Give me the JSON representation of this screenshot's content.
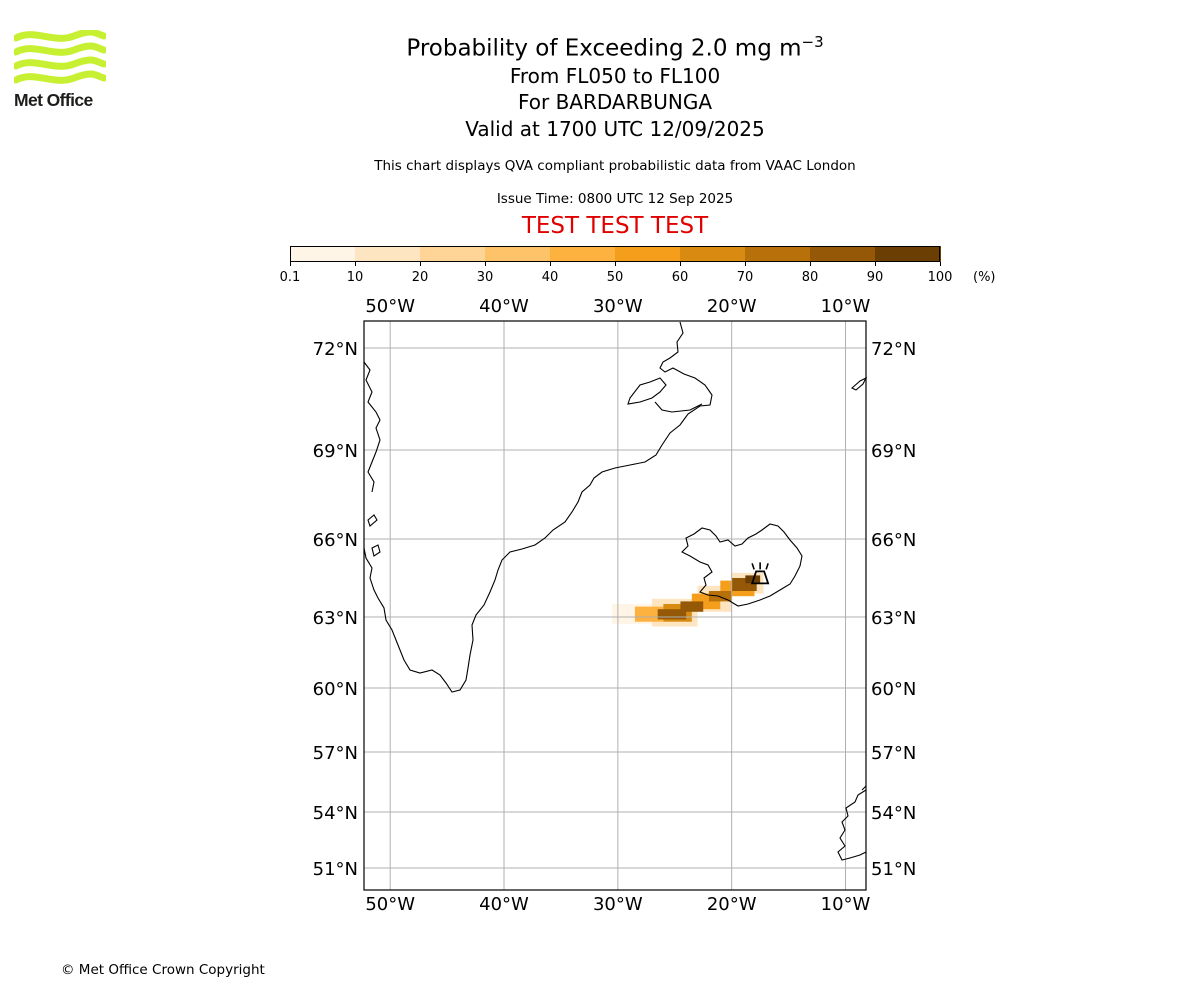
{
  "title": "Probability of Exceeding 2.0 mg m",
  "title_superscript": "−3",
  "subtitle_levels": "From FL050 to FL100",
  "subtitle_volcano": "For BARDARBUNGA",
  "subtitle_valid": "Valid at 1700 UTC 12/09/2025",
  "description": "This chart displays QVA compliant probabilistic data from VAAC London",
  "issue_time": "Issue Time: 0800 UTC 12 Sep 2025",
  "test_banner": "TEST TEST TEST",
  "logo_text": "Met Office",
  "copyright": "© Met Office Crown Copyright",
  "colors": {
    "test_banner": "#e00000",
    "logo_waves": "#c8f032",
    "grid": "#b0b0b0"
  },
  "colorbar": {
    "unit": "(%)",
    "ticks": [
      "0.1",
      "10",
      "20",
      "30",
      "40",
      "50",
      "60",
      "70",
      "80",
      "90",
      "100"
    ],
    "colors": [
      "#fff5e6",
      "#fee5c2",
      "#fed596",
      "#fec368",
      "#fdb13e",
      "#f59e1c",
      "#d98a10",
      "#b8700a",
      "#955806",
      "#6b3e04"
    ]
  },
  "map": {
    "lon_range": [
      -52.3,
      -8.2
    ],
    "lat_range": [
      50.2,
      72.8
    ],
    "lon_labels": [
      {
        "lon": -50,
        "label": "50°W"
      },
      {
        "lon": -40,
        "label": "40°W"
      },
      {
        "lon": -30,
        "label": "30°W"
      },
      {
        "lon": -20,
        "label": "20°W"
      },
      {
        "lon": -10,
        "label": "10°W"
      }
    ],
    "lat_labels": [
      {
        "lat": 72,
        "label": "72°N"
      },
      {
        "lat": 69,
        "label": "69°N"
      },
      {
        "lat": 66,
        "label": "66°N"
      },
      {
        "lat": 63,
        "label": "63°N"
      },
      {
        "lat": 60,
        "label": "60°N"
      },
      {
        "lat": 57,
        "label": "57°N"
      },
      {
        "lat": 54,
        "label": "54°N"
      },
      {
        "lat": 51,
        "label": "51°N"
      }
    ],
    "volcano": {
      "name": "BARDARBUNGA",
      "lon": -17.5,
      "lat": 64.6,
      "icon": "volcano-icon"
    },
    "plume_bands": [
      {
        "lon_start": -30.5,
        "lon_end": -27.0,
        "lat_min": 62.7,
        "lat_max": 63.5,
        "probability": 5
      },
      {
        "lon_start": -27.0,
        "lon_end": -23.0,
        "lat_min": 62.6,
        "lat_max": 63.7,
        "probability": 15
      },
      {
        "lon_start": -23.0,
        "lon_end": -20.0,
        "lat_min": 63.2,
        "lat_max": 64.2,
        "probability": 12
      },
      {
        "lon_start": -20.0,
        "lon_end": -17.2,
        "lat_min": 63.9,
        "lat_max": 64.7,
        "probability": 10
      },
      {
        "lon_start": -28.5,
        "lon_end": -26.0,
        "lat_min": 62.8,
        "lat_max": 63.4,
        "probability": 45
      },
      {
        "lon_start": -26.0,
        "lon_end": -23.5,
        "lat_min": 62.8,
        "lat_max": 63.5,
        "probability": 60
      },
      {
        "lon_start": -23.5,
        "lon_end": -21.0,
        "lat_min": 63.3,
        "lat_max": 63.9,
        "probability": 55
      },
      {
        "lon_start": -21.0,
        "lon_end": -18.0,
        "lat_min": 63.8,
        "lat_max": 64.4,
        "probability": 50
      },
      {
        "lon_start": -26.5,
        "lon_end": -24.0,
        "lat_min": 62.9,
        "lat_max": 63.3,
        "probability": 85
      },
      {
        "lon_start": -24.5,
        "lon_end": -22.5,
        "lat_min": 63.2,
        "lat_max": 63.6,
        "probability": 80
      },
      {
        "lon_start": -22.0,
        "lon_end": -20.0,
        "lat_min": 63.6,
        "lat_max": 64.0,
        "probability": 75
      },
      {
        "lon_start": -20.0,
        "lon_end": -17.8,
        "lat_min": 64.0,
        "lat_max": 64.5,
        "probability": 85
      },
      {
        "lon_start": -18.8,
        "lon_end": -17.5,
        "lat_min": 64.3,
        "lat_max": 64.6,
        "probability": 95
      }
    ]
  }
}
